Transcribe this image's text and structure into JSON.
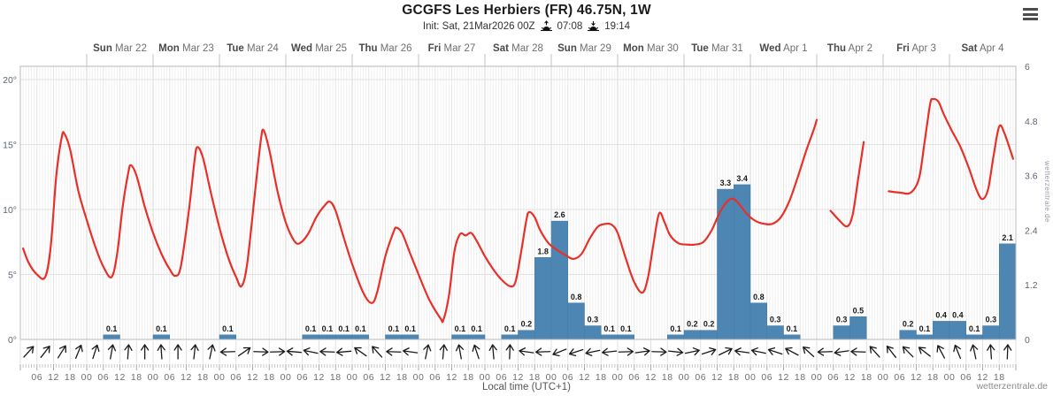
{
  "header": {
    "title": "GCGFS Les Herbiers (FR) 46.75N, 1W",
    "init_label": "Init: Sat, 21Mar2026 00Z",
    "sunrise_time": "07:08",
    "sunset_time": "19:14"
  },
  "menu": {
    "icon": "hamburger-icon"
  },
  "watermark": "wetterzentrale.de",
  "axis": {
    "x_title": "Local time (UTC+1)",
    "left_ticks": [
      "20°",
      "15°",
      "10°",
      "5°",
      "0°"
    ],
    "right_ticks": [
      "6",
      "4.8",
      "3.6",
      "2.4",
      "1.2",
      "0"
    ],
    "time_label_cycle": [
      "06",
      "12",
      "18",
      "00"
    ]
  },
  "colors": {
    "temperature_line": "#e73029",
    "precip_bar": "#4d86b3",
    "precip_bar_edge": "#447aa6",
    "bar_label": "#1a1a1a",
    "day_label_bold": "#4a4a4a",
    "day_label_date": "#6f6f6f",
    "axis_label": "#5d6570",
    "time_label": "#6e6e6e",
    "grid_hour": "#f0f0f0",
    "grid_6h": "#e6e6e6",
    "grid_day": "#d6d6d6",
    "grid_horizontal": "#e2e2e2",
    "plot_border": "#b8b8b8",
    "wind_arrow": "#1a1a1a"
  },
  "chart_data": {
    "type": "line+bar",
    "title": "GCGFS meteogram Les Herbiers (FR)",
    "x_axis": "hours since Sat Mar 21 2026 00:00 local (UTC+1)",
    "t_range_hours": [
      0,
      360
    ],
    "temp_ylim": [
      0,
      20
    ],
    "precip_ylim": [
      0,
      6
    ],
    "days": [
      {
        "dow": "Sun",
        "date": "Mar 22"
      },
      {
        "dow": "Mon",
        "date": "Mar 23"
      },
      {
        "dow": "Tue",
        "date": "Mar 24"
      },
      {
        "dow": "Wed",
        "date": "Mar 25"
      },
      {
        "dow": "Thu",
        "date": "Mar 26"
      },
      {
        "dow": "Fri",
        "date": "Mar 27"
      },
      {
        "dow": "Sat",
        "date": "Mar 28"
      },
      {
        "dow": "Sun",
        "date": "Mar 29"
      },
      {
        "dow": "Mon",
        "date": "Mar 30"
      },
      {
        "dow": "Tue",
        "date": "Mar 31"
      },
      {
        "dow": "Wed",
        "date": "Apr 1"
      },
      {
        "dow": "Thu",
        "date": "Apr 2"
      },
      {
        "dow": "Fri",
        "date": "Apr 3"
      },
      {
        "dow": "Sat",
        "date": "Apr 4"
      }
    ],
    "temperature_series": {
      "name": "2m temperature (°C)",
      "segments": [
        [
          [
            1,
            7.0
          ],
          [
            3,
            5.9
          ],
          [
            6,
            5.0
          ],
          [
            9,
            4.8
          ],
          [
            11,
            7.2
          ],
          [
            13,
            12.6
          ],
          [
            15,
            15.6
          ],
          [
            16,
            15.8
          ],
          [
            18,
            14.6
          ],
          [
            21,
            11.4
          ],
          [
            24,
            9.2
          ],
          [
            27,
            7.2
          ],
          [
            30,
            5.6
          ],
          [
            33,
            4.8
          ],
          [
            35,
            6.6
          ],
          [
            37,
            10.2
          ],
          [
            39,
            12.8
          ],
          [
            40,
            13.4
          ],
          [
            42,
            12.6
          ],
          [
            45,
            10.2
          ],
          [
            48,
            8.2
          ],
          [
            51,
            6.6
          ],
          [
            54,
            5.4
          ],
          [
            56,
            4.9
          ],
          [
            58,
            5.6
          ],
          [
            61,
            10.0
          ],
          [
            63,
            13.8
          ],
          [
            64,
            14.8
          ],
          [
            66,
            14.0
          ],
          [
            69,
            11.2
          ],
          [
            72,
            8.6
          ],
          [
            75,
            6.4
          ],
          [
            78,
            4.8
          ],
          [
            80,
            4.1
          ],
          [
            82,
            5.8
          ],
          [
            85,
            11.6
          ],
          [
            87,
            15.4
          ],
          [
            88,
            16.1
          ],
          [
            90,
            14.6
          ],
          [
            93,
            11.4
          ],
          [
            96,
            9.0
          ],
          [
            99,
            7.6
          ],
          [
            101,
            7.4
          ],
          [
            104,
            8.1
          ],
          [
            107,
            9.4
          ],
          [
            110,
            10.3
          ],
          [
            112,
            10.6
          ],
          [
            114,
            9.9
          ],
          [
            117,
            7.8
          ],
          [
            120,
            5.8
          ],
          [
            124,
            3.6
          ],
          [
            127,
            2.8
          ],
          [
            129,
            3.6
          ],
          [
            132,
            6.4
          ],
          [
            135,
            8.3
          ],
          [
            136,
            8.6
          ],
          [
            138,
            8.2
          ],
          [
            141,
            6.6
          ],
          [
            144,
            5.0
          ],
          [
            148,
            3.0
          ],
          [
            152,
            1.6
          ],
          [
            153,
            1.5
          ],
          [
            155,
            3.4
          ],
          [
            157,
            6.8
          ],
          [
            159,
            8.1
          ],
          [
            161,
            8.0
          ],
          [
            163,
            8.2
          ],
          [
            165,
            7.6
          ],
          [
            168,
            6.4
          ],
          [
            171,
            5.4
          ],
          [
            174,
            4.6
          ],
          [
            177,
            4.1
          ],
          [
            179,
            4.4
          ],
          [
            181,
            6.6
          ],
          [
            183,
            9.2
          ],
          [
            184,
            9.8
          ],
          [
            186,
            9.4
          ],
          [
            188,
            8.4
          ],
          [
            191,
            7.4
          ],
          [
            194,
            6.9
          ],
          [
            197,
            6.5
          ],
          [
            200,
            6.2
          ],
          [
            203,
            6.6
          ],
          [
            206,
            7.8
          ],
          [
            209,
            8.7
          ],
          [
            212,
            8.9
          ],
          [
            214,
            8.8
          ],
          [
            216,
            8.2
          ],
          [
            219,
            6.2
          ],
          [
            222,
            4.4
          ],
          [
            225,
            3.6
          ],
          [
            227,
            4.8
          ],
          [
            229,
            7.4
          ],
          [
            231,
            9.7
          ],
          [
            233,
            9.0
          ],
          [
            235,
            8.0
          ],
          [
            238,
            7.4
          ],
          [
            241,
            7.3
          ],
          [
            244,
            7.3
          ],
          [
            247,
            7.5
          ],
          [
            250,
            8.4
          ],
          [
            253,
            9.8
          ],
          [
            256,
            10.7
          ],
          [
            258,
            10.8
          ],
          [
            260,
            10.4
          ],
          [
            263,
            9.6
          ],
          [
            266,
            9.1
          ],
          [
            269,
            8.9
          ],
          [
            272,
            8.9
          ],
          [
            275,
            9.4
          ],
          [
            278,
            10.6
          ],
          [
            281,
            12.4
          ],
          [
            284,
            14.4
          ],
          [
            287,
            16.2
          ],
          [
            288,
            16.9
          ]
        ],
        [
          [
            293,
            9.9
          ],
          [
            296,
            9.2
          ],
          [
            299,
            8.7
          ],
          [
            301,
            9.6
          ],
          [
            303,
            12.4
          ],
          [
            305,
            15.2
          ]
        ],
        [
          [
            314,
            11.4
          ],
          [
            318,
            11.3
          ],
          [
            322,
            11.3
          ],
          [
            325,
            12.4
          ],
          [
            327,
            15.2
          ],
          [
            329,
            18.1
          ],
          [
            330,
            18.5
          ],
          [
            332,
            18.3
          ],
          [
            334,
            17.3
          ],
          [
            337,
            16.0
          ],
          [
            340,
            14.8
          ],
          [
            343,
            13.2
          ],
          [
            346,
            11.4
          ],
          [
            348,
            10.8
          ],
          [
            350,
            11.6
          ],
          [
            352,
            14.2
          ],
          [
            354,
            16.4
          ],
          [
            356,
            15.8
          ],
          [
            359,
            13.9
          ]
        ]
      ]
    },
    "precipitation_series": {
      "name": "6h precipitation (mm)",
      "unit": "mm",
      "slot_hours": 6,
      "slots": [
        [
          30,
          0.1
        ],
        [
          48,
          0.1
        ],
        [
          72,
          0.1
        ],
        [
          102,
          0.1
        ],
        [
          108,
          0.1
        ],
        [
          114,
          0.1
        ],
        [
          120,
          0.1
        ],
        [
          132,
          0.1
        ],
        [
          138,
          0.1
        ],
        [
          156,
          0.1
        ],
        [
          162,
          0.1
        ],
        [
          174,
          0.1
        ],
        [
          180,
          0.2
        ],
        [
          186,
          1.8
        ],
        [
          192,
          2.6
        ],
        [
          198,
          0.8
        ],
        [
          204,
          0.3
        ],
        [
          210,
          0.1
        ],
        [
          216,
          0.1
        ],
        [
          234,
          0.1
        ],
        [
          240,
          0.2
        ],
        [
          246,
          0.2
        ],
        [
          252,
          3.3
        ],
        [
          258,
          3.4
        ],
        [
          264,
          0.8
        ],
        [
          270,
          0.3
        ],
        [
          276,
          0.1
        ],
        [
          294,
          0.3
        ],
        [
          300,
          0.5
        ],
        [
          318,
          0.2
        ],
        [
          324,
          0.1
        ],
        [
          330,
          0.4
        ],
        [
          336,
          0.4
        ],
        [
          342,
          0.1
        ],
        [
          348,
          0.3
        ],
        [
          354,
          2.1
        ]
      ]
    },
    "wind_series": {
      "name": "10m wind direction (arrow heading, deg, 0=N)",
      "slot_hours": 6,
      "angles": [
        42,
        38,
        32,
        22,
        18,
        10,
        4,
        0,
        356,
        0,
        6,
        12,
        268,
        55,
        92,
        88,
        275,
        282,
        272,
        265,
        305,
        318,
        272,
        278,
        12,
        5,
        350,
        342,
        355,
        2,
        278,
        268,
        248,
        252,
        258,
        264,
        88,
        82,
        92,
        96,
        78,
        72,
        64,
        278,
        282,
        288,
        298,
        312,
        268,
        262,
        272,
        318,
        322,
        315,
        308,
        332,
        338,
        348,
        356,
        2
      ]
    }
  }
}
